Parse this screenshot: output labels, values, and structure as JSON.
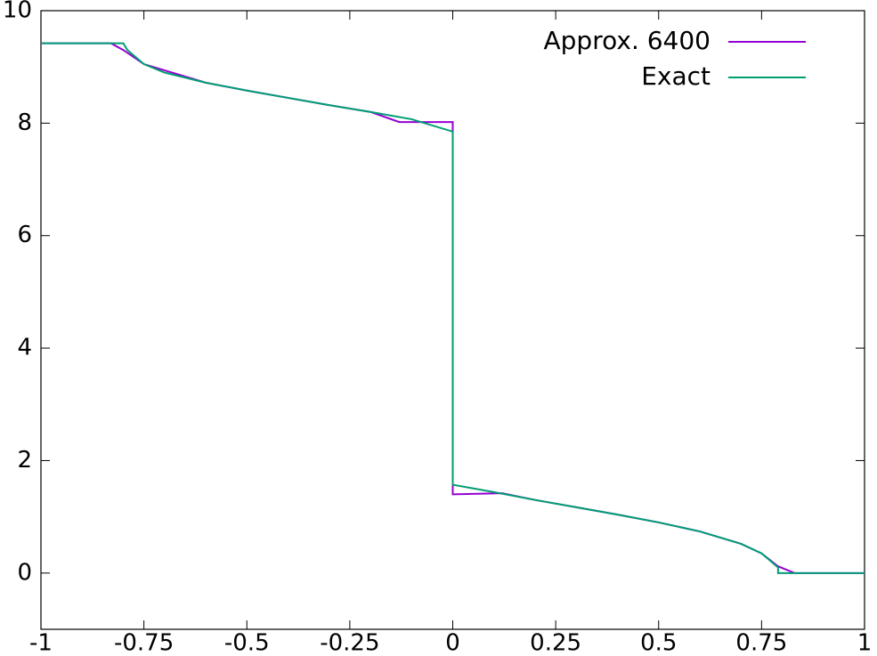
{
  "chart_data": {
    "type": "line",
    "xlim": [
      -1,
      1
    ],
    "xticks": [
      -1,
      -0.75,
      -0.5,
      -0.25,
      0,
      0.25,
      0.5,
      0.75,
      1
    ],
    "ylim": [
      -1,
      10
    ],
    "yticks": [
      0,
      2,
      4,
      6,
      8,
      10
    ],
    "legend": "top-right",
    "series": [
      {
        "name": "Approx. 6400",
        "color": "#9400d3",
        "x": [
          -1,
          -0.83,
          -0.8,
          -0.75,
          -0.6,
          -0.5,
          -0.4,
          -0.3,
          -0.2,
          -0.13,
          0,
          0,
          0.12,
          0.2,
          0.3,
          0.4,
          0.5,
          0.6,
          0.7,
          0.75,
          0.79,
          0.83,
          1
        ],
        "values": [
          9.42,
          9.42,
          9.3,
          9.05,
          8.72,
          8.58,
          8.45,
          8.32,
          8.2,
          8.02,
          8.02,
          1.4,
          1.42,
          1.3,
          1.17,
          1.04,
          0.9,
          0.74,
          0.52,
          0.35,
          0.12,
          0,
          0
        ]
      },
      {
        "name": "Exact",
        "color": "#009e73",
        "x": [
          -1,
          -0.8,
          -0.79,
          -0.75,
          -0.7,
          -0.6,
          -0.5,
          -0.4,
          -0.3,
          -0.2,
          -0.1,
          0,
          0,
          0.1,
          0.2,
          0.3,
          0.4,
          0.5,
          0.6,
          0.7,
          0.75,
          0.79,
          0.79,
          1
        ],
        "values": [
          9.42,
          9.42,
          9.3,
          9.05,
          8.9,
          8.72,
          8.58,
          8.45,
          8.32,
          8.2,
          8.07,
          7.85,
          1.57,
          1.44,
          1.3,
          1.17,
          1.04,
          0.9,
          0.74,
          0.52,
          0.35,
          0.1,
          0,
          0
        ]
      }
    ]
  }
}
